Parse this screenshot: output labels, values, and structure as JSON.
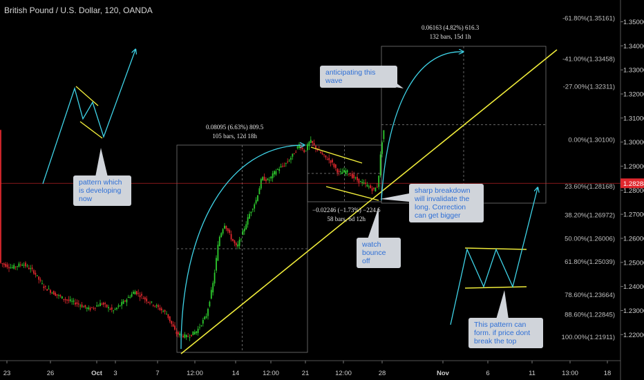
{
  "header": {
    "title": "British Pound / U.S. Dollar, 120, OANDA"
  },
  "chart_data": {
    "type": "candlestick",
    "symbol": "British Pound / U.S. Dollar, 120, OANDA",
    "y_axis": {
      "ticks": [
        "1.35000",
        "1.34000",
        "1.33000",
        "1.32000",
        "1.31000",
        "1.30000",
        "1.29000",
        "1.28000",
        "1.27000",
        "1.26000",
        "1.25000",
        "1.24000",
        "1.23000",
        "1.22000"
      ],
      "range": [
        1.216,
        1.357
      ],
      "current_price": "1.28288"
    },
    "x_axis": {
      "ticks": [
        "23",
        "26",
        "Oct",
        "3",
        "7",
        "12:00",
        "14",
        "12:00",
        "21",
        "12:00",
        "28",
        "Nov",
        "6",
        "11",
        "13:00",
        "18"
      ]
    },
    "fib_levels": [
      {
        "label": "-61.80%(1.35161)",
        "value": 1.35161
      },
      {
        "label": "-41.00%(1.33458)",
        "value": 1.33458
      },
      {
        "label": "-27.00%(1.32311)",
        "value": 1.32311
      },
      {
        "label": "0.00%(1.30100)",
        "value": 1.301
      },
      {
        "label": "23.60%(1.28168)",
        "value": 1.28168
      },
      {
        "label": "38.20%(1.26972)",
        "value": 1.26972
      },
      {
        "label": "50.00%(1.26006)",
        "value": 1.26006
      },
      {
        "label": "61.80%(1.25039)",
        "value": 1.25039
      },
      {
        "label": "78.60%(1.23664)",
        "value": 1.23664
      },
      {
        "label": "88.60%(1.22845)",
        "value": 1.22845
      },
      {
        "label": "100.00%(1.21911)",
        "value": 1.21911
      }
    ],
    "measurements": [
      {
        "line1": "0.06163 (4.82%) 616.3",
        "line2": "132 bars, 15d 1h"
      },
      {
        "line1": "0.08095 (6.63%) 809.5",
        "line2": "105 bars, 12d 18h"
      },
      {
        "line1": "−0.02246 (−1.73%) −224.6",
        "line2": "58 bars, 6d 12h"
      }
    ],
    "annotations": [
      {
        "text": "anticipating this wave"
      },
      {
        "text": "pattern which is developing now"
      },
      {
        "text": "sharp breakdown will invalidate the long. Correction can get bigger"
      },
      {
        "text": "watch bounce off"
      },
      {
        "text": "This pattern can form. if price dont break the top"
      }
    ],
    "colors": {
      "up": "#2ecc2e",
      "down": "#e0282e",
      "trendline": "#f0ec3a",
      "projection": "#3fd4e8",
      "price_line": "#e0282e"
    }
  }
}
